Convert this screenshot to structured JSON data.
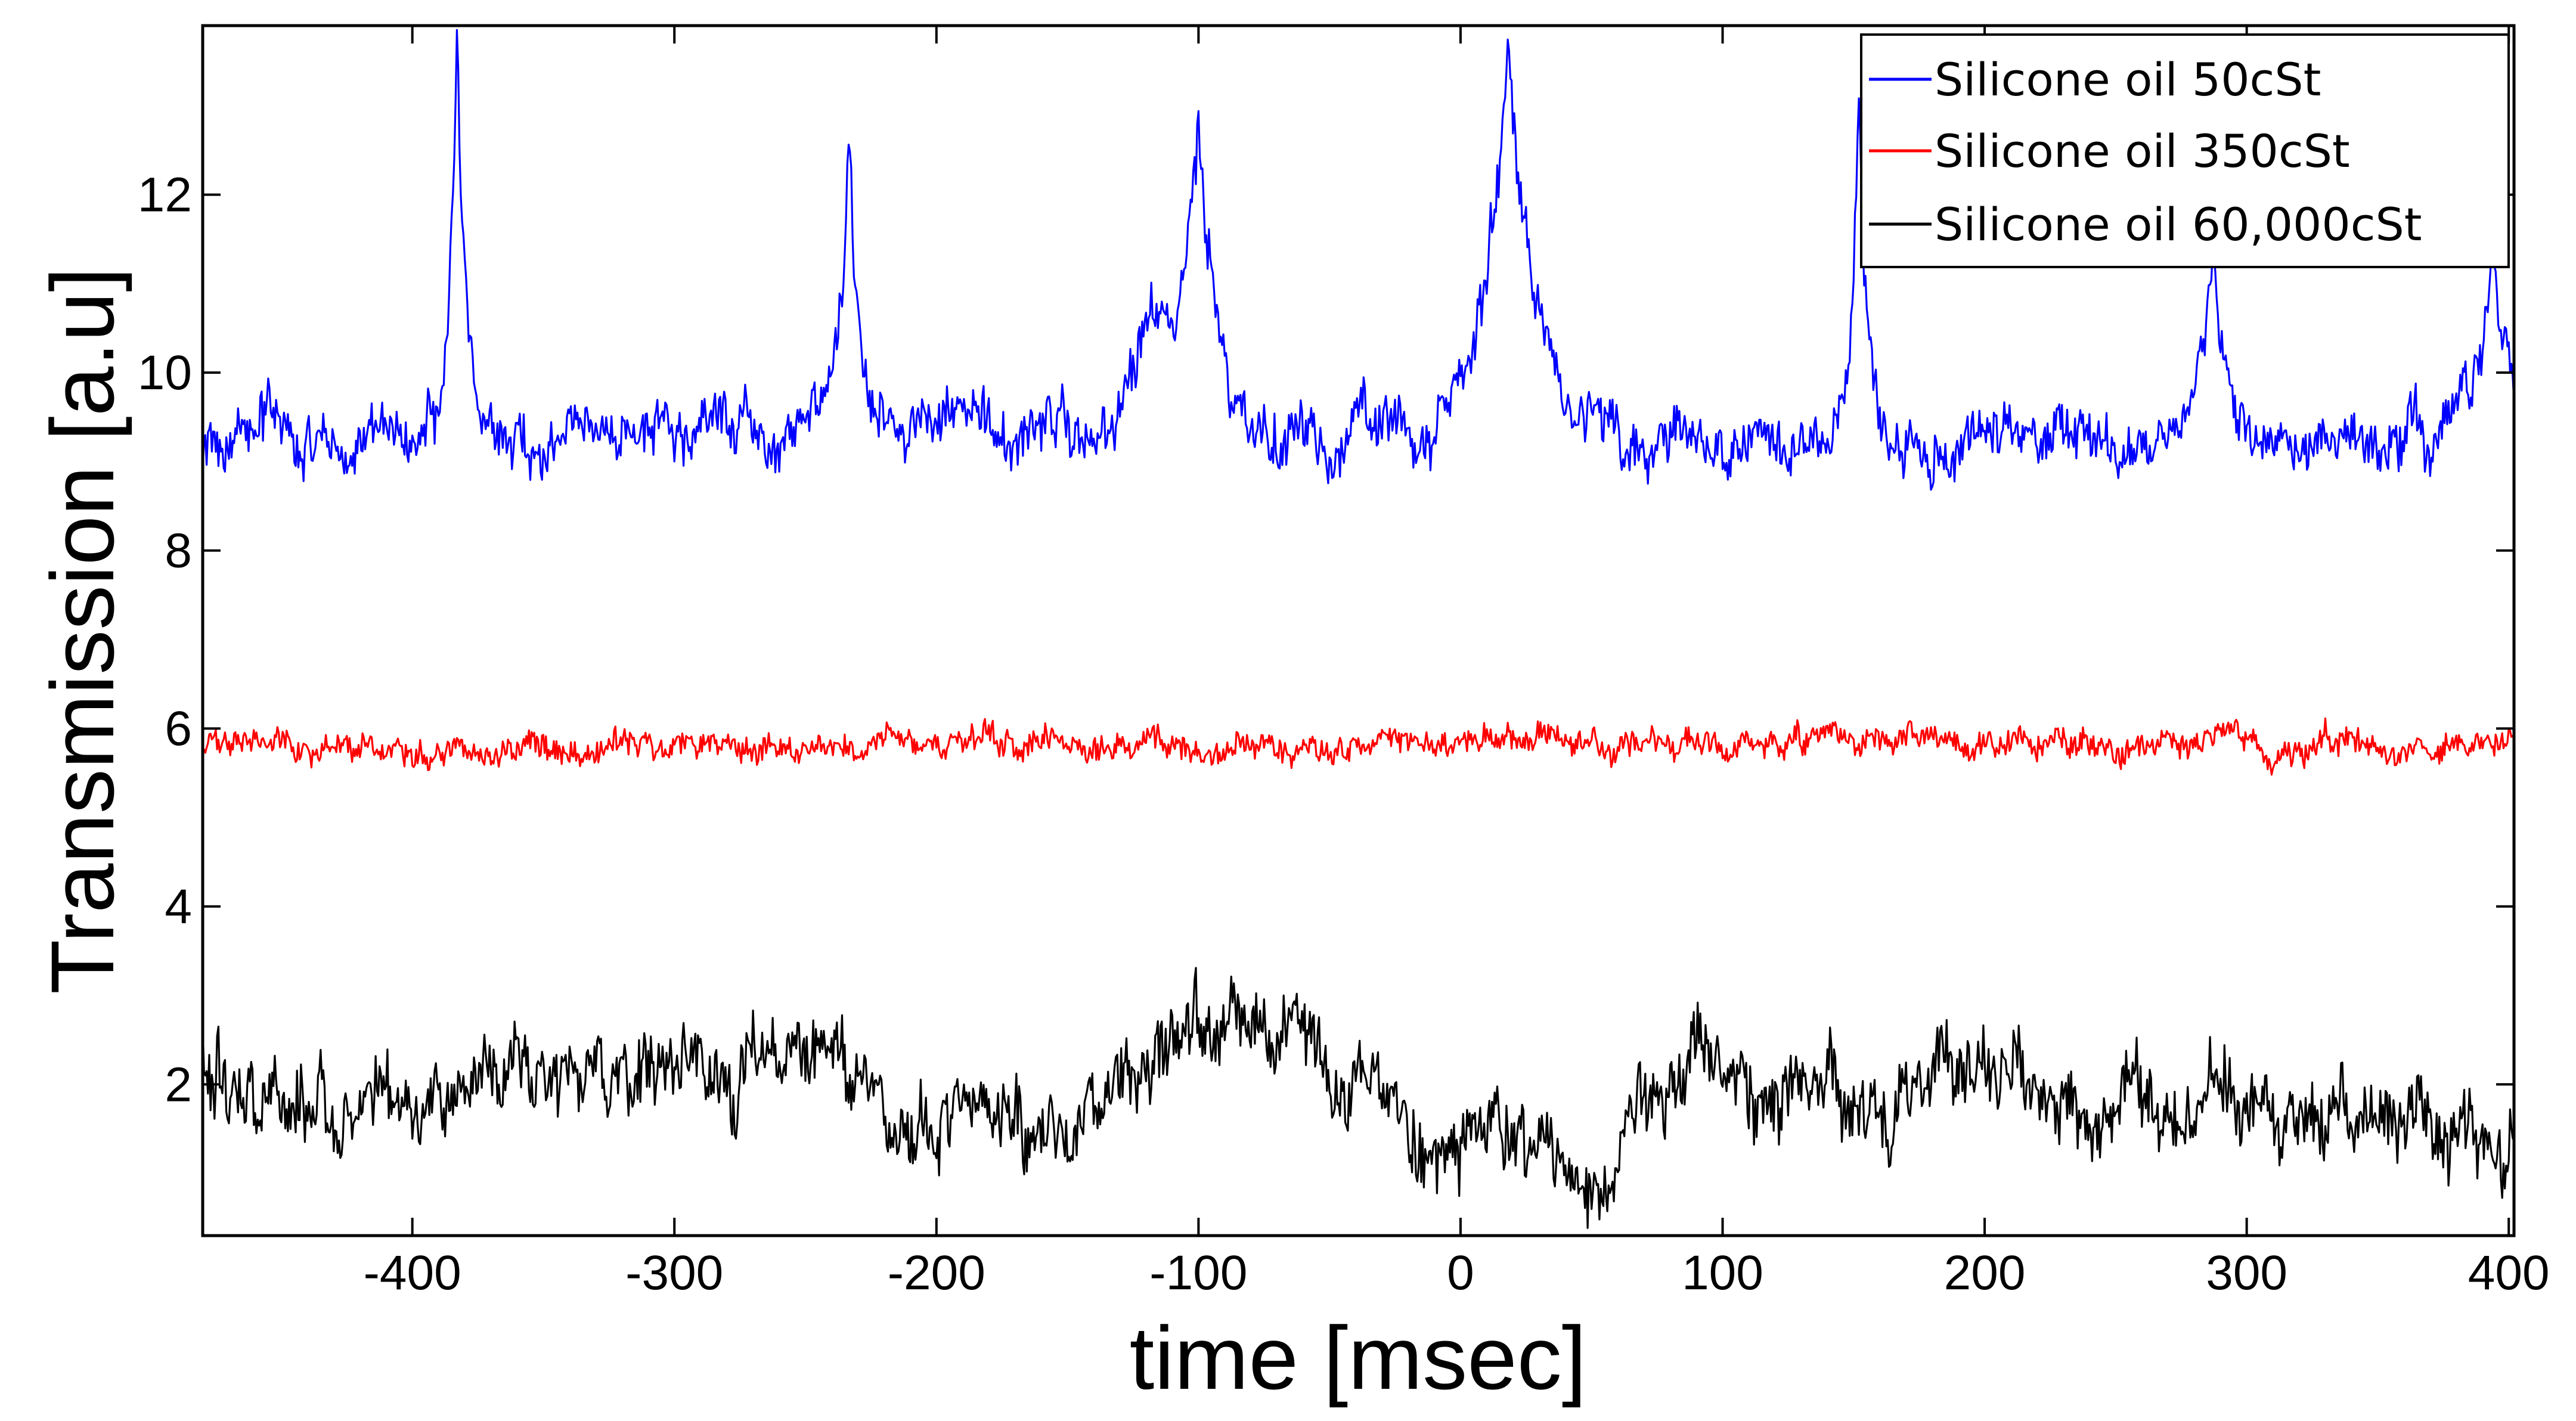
{
  "chart_data": {
    "type": "line",
    "title": "",
    "xlabel": "time  [msec]",
    "ylabel": "Transmission [a.u]",
    "xlim": [
      -480,
      402
    ],
    "ylim": [
      0.3,
      13.9
    ],
    "xticks": [
      -400,
      -300,
      -200,
      -100,
      0,
      100,
      200,
      300,
      400
    ],
    "yticks": [
      2,
      4,
      6,
      8,
      10,
      12
    ],
    "grid": false,
    "legend_position": "top-right",
    "series": [
      {
        "name": "Silicone oil 50cSt",
        "color": "#0000ff",
        "baseline": 9.3,
        "noise": 0.5,
        "x_range": [
          -480,
          402
        ],
        "peaks": [
          {
            "t": -383,
            "height": 13.8,
            "width": 3
          },
          {
            "t": -233,
            "height": 13.1,
            "width": 4
          },
          {
            "t": -100,
            "height": 13.2,
            "width": 6
          },
          {
            "t": -118,
            "height": 10.9,
            "width": 9
          },
          {
            "t": 18,
            "height": 13.9,
            "width": 9
          },
          {
            "t": 152,
            "height": 13.9,
            "width": 3
          },
          {
            "t": 287,
            "height": 11.9,
            "width": 4
          },
          {
            "t": 394,
            "height": 11.6,
            "width": 7
          }
        ]
      },
      {
        "name": "Silicone oil 350cSt",
        "color": "#ff0000",
        "baseline": 5.8,
        "noise": 0.25,
        "x_range": [
          -480,
          402
        ]
      },
      {
        "name": "Silicone oil 60,000cSt",
        "color": "#000000",
        "baseline": 1.9,
        "noise": 0.7,
        "x_range": [
          -480,
          402
        ],
        "trend": [
          {
            "t": -480,
            "v": 2.3
          },
          {
            "t": -420,
            "v": 1.6
          },
          {
            "t": -360,
            "v": 2.2
          },
          {
            "t": -280,
            "v": 1.9
          },
          {
            "t": -240,
            "v": 2.6
          },
          {
            "t": -210,
            "v": 1.5
          },
          {
            "t": -150,
            "v": 1.7
          },
          {
            "t": -100,
            "v": 2.4
          },
          {
            "t": -60,
            "v": 2.5
          },
          {
            "t": -20,
            "v": 1.6
          },
          {
            "t": 40,
            "v": 1.0
          },
          {
            "t": 80,
            "v": 2.1
          },
          {
            "t": 150,
            "v": 1.8
          },
          {
            "t": 200,
            "v": 2.1
          },
          {
            "t": 250,
            "v": 1.5
          },
          {
            "t": 320,
            "v": 1.8
          },
          {
            "t": 402,
            "v": 1.4
          }
        ]
      }
    ]
  }
}
